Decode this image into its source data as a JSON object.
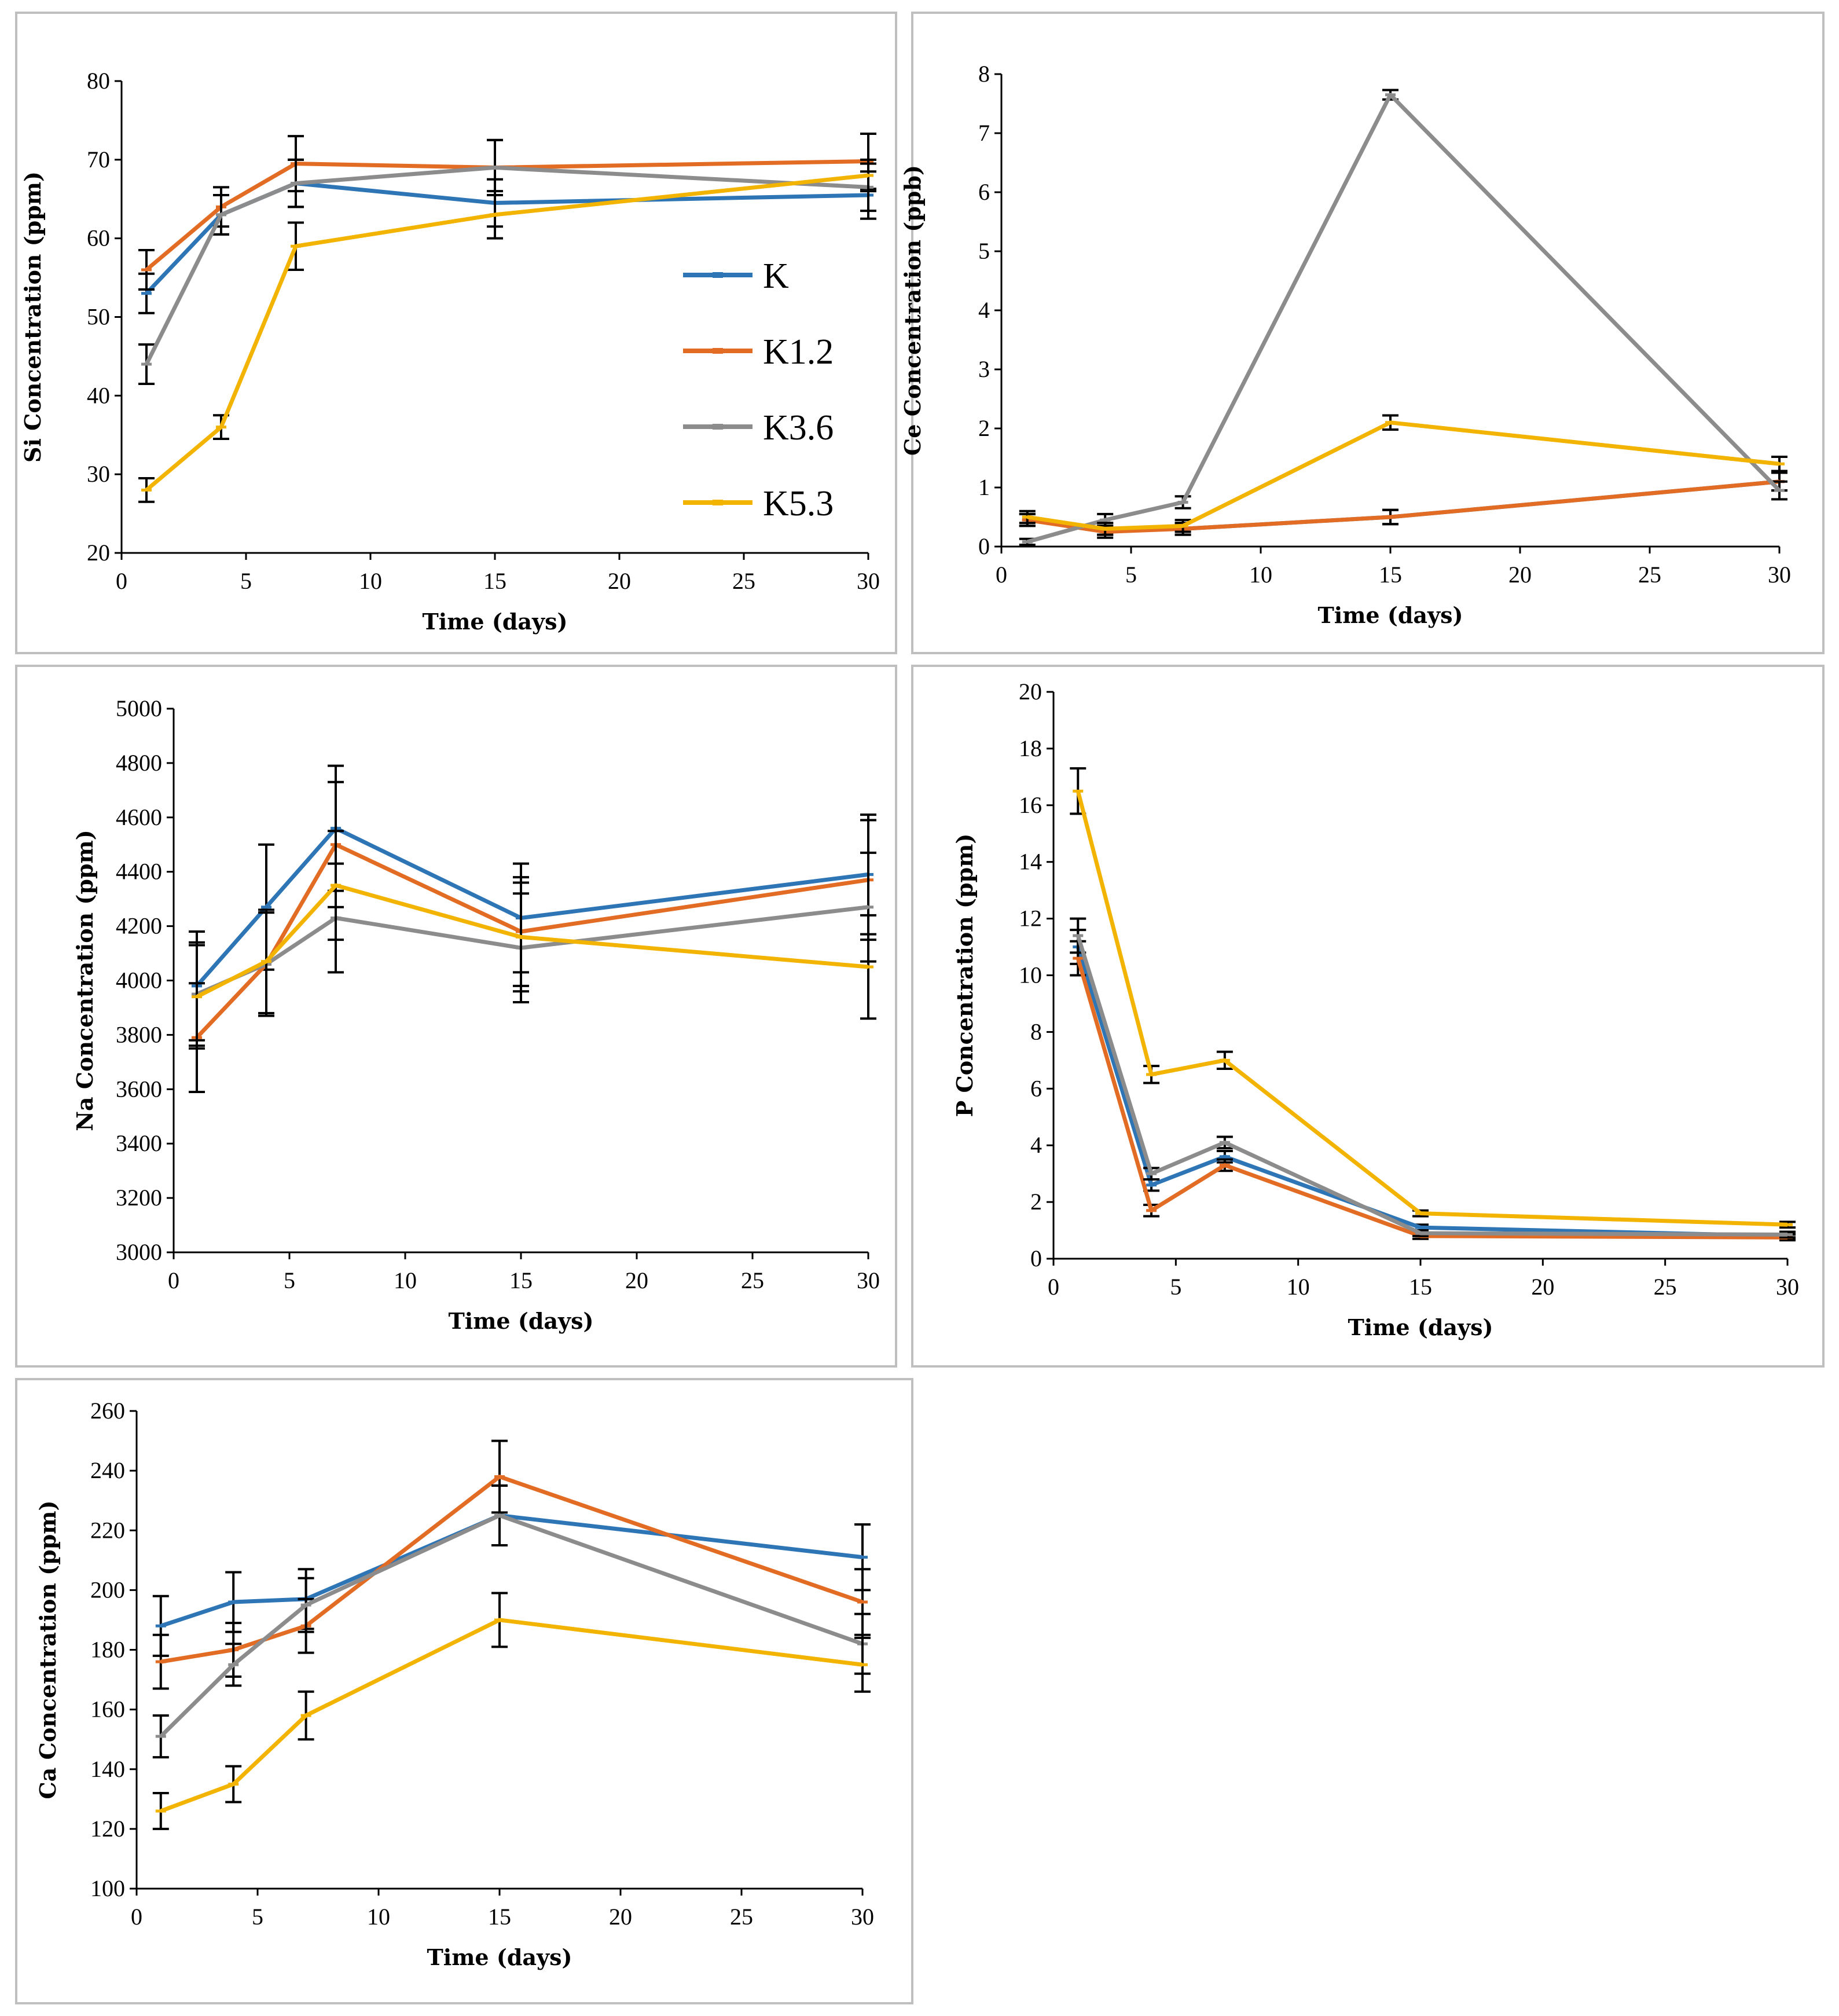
{
  "figure": {
    "series_names": [
      "K",
      "K1.2",
      "K3.6",
      "K5.3"
    ],
    "colors": {
      "K": "#2e75b6",
      "K1.2": "#e36c24",
      "K3.6": "#8c8c8c",
      "K5.3": "#f2b400"
    }
  },
  "chart_data": [
    {
      "type": "line",
      "xlabel": "Time (days)",
      "ylabel": "Si Concentration (ppm)",
      "xlim": [
        0,
        30
      ],
      "xticks": [
        0,
        5,
        10,
        15,
        20,
        25,
        30
      ],
      "ylim": [
        20,
        80
      ],
      "yticks": [
        20,
        30,
        40,
        50,
        60,
        70,
        80
      ],
      "legend": "right-center",
      "x": [
        1,
        4,
        7,
        15,
        30
      ],
      "series": [
        {
          "name": "K",
          "values": [
            53,
            63,
            67,
            64.5,
            65.5
          ],
          "errors": [
            2.5,
            2.5,
            3,
            3,
            3
          ]
        },
        {
          "name": "K1.2",
          "values": [
            56,
            64,
            69.5,
            69,
            69.8
          ],
          "errors": [
            2.5,
            2.5,
            3.5,
            3.5,
            3.5
          ]
        },
        {
          "name": "K3.6",
          "values": [
            44,
            63,
            67,
            69,
            66.5
          ],
          "errors": [
            2.5,
            2.5,
            3,
            3.5,
            3
          ]
        },
        {
          "name": "K5.3",
          "values": [
            28,
            36,
            59,
            63,
            68
          ],
          "errors": [
            1.5,
            1.5,
            3,
            3,
            2
          ]
        }
      ]
    },
    {
      "type": "line",
      "xlabel": "Time (days)",
      "ylabel": "Ce Concentration (ppb)",
      "xlim": [
        0,
        30
      ],
      "xticks": [
        0,
        5,
        10,
        15,
        20,
        25,
        30
      ],
      "ylim": [
        0,
        8
      ],
      "yticks": [
        0,
        1,
        2,
        3,
        4,
        5,
        6,
        7,
        8
      ],
      "x": [
        1,
        4,
        7,
        15,
        30
      ],
      "series": [
        {
          "name": "K",
          "values": [
            0.45,
            0.3,
            0.3,
            0.5,
            1.1
          ],
          "errors": [
            0.1,
            0.1,
            0.1,
            0.12,
            0.15
          ]
        },
        {
          "name": "K1.2",
          "values": [
            0.45,
            0.25,
            0.3,
            0.5,
            1.1
          ],
          "errors": [
            0.1,
            0.1,
            0.1,
            0.12,
            0.15
          ]
        },
        {
          "name": "K3.6",
          "values": [
            0.08,
            0.45,
            0.75,
            7.65,
            0.95
          ],
          "errors": [
            0.05,
            0.1,
            0.1,
            0.08,
            0.15
          ]
        },
        {
          "name": "K5.3",
          "values": [
            0.5,
            0.3,
            0.35,
            2.1,
            1.4
          ],
          "errors": [
            0.1,
            0.1,
            0.1,
            0.12,
            0.12
          ]
        }
      ]
    },
    {
      "type": "line",
      "xlabel": "Time (days)",
      "ylabel": "Na Concentration (ppm)",
      "xlim": [
        0,
        30
      ],
      "xticks": [
        0,
        5,
        10,
        15,
        20,
        25,
        30
      ],
      "ylim": [
        3000,
        5000
      ],
      "yticks": [
        3000,
        3200,
        3400,
        3600,
        3800,
        4000,
        4200,
        4400,
        4600,
        4800,
        5000
      ],
      "x": [
        1,
        4,
        7,
        15,
        30
      ],
      "series": [
        {
          "name": "K",
          "values": [
            3980,
            4270,
            4560,
            4230,
            4390
          ],
          "errors": [
            200,
            230,
            230,
            200,
            220
          ]
        },
        {
          "name": "K1.2",
          "values": [
            3790,
            4060,
            4500,
            4180,
            4370
          ],
          "errors": [
            200,
            190,
            230,
            200,
            220
          ]
        },
        {
          "name": "K3.6",
          "values": [
            3950,
            4060,
            4230,
            4120,
            4270
          ],
          "errors": [
            190,
            190,
            200,
            200,
            200
          ]
        },
        {
          "name": "K5.3",
          "values": [
            3940,
            4070,
            4350,
            4160,
            4050
          ],
          "errors": [
            190,
            190,
            200,
            200,
            190
          ]
        }
      ]
    },
    {
      "type": "line",
      "xlabel": "Time (days)",
      "ylabel": "P Concentration (ppm)",
      "xlim": [
        0,
        30
      ],
      "xticks": [
        0,
        5,
        10,
        15,
        20,
        25,
        30
      ],
      "ylim": [
        0,
        20
      ],
      "yticks": [
        0,
        2,
        4,
        6,
        8,
        10,
        12,
        14,
        16,
        18,
        20
      ],
      "x": [
        1,
        4,
        7,
        15,
        30
      ],
      "series": [
        {
          "name": "K",
          "values": [
            11,
            2.6,
            3.6,
            1.1,
            0.8
          ],
          "errors": [
            0.6,
            0.2,
            0.2,
            0.1,
            0.1
          ]
        },
        {
          "name": "K1.2",
          "values": [
            10.6,
            1.7,
            3.3,
            0.8,
            0.75
          ],
          "errors": [
            0.6,
            0.2,
            0.2,
            0.1,
            0.1
          ]
        },
        {
          "name": "K3.6",
          "values": [
            11.4,
            3.0,
            4.1,
            0.9,
            0.85
          ],
          "errors": [
            0.6,
            0.2,
            0.2,
            0.1,
            0.1
          ]
        },
        {
          "name": "K5.3",
          "values": [
            16.5,
            6.5,
            7.0,
            1.6,
            1.2
          ],
          "errors": [
            0.8,
            0.3,
            0.3,
            0.1,
            0.1
          ]
        }
      ]
    },
    {
      "type": "line",
      "xlabel": "Time (days)",
      "ylabel": "Ca Concentration (ppm)",
      "xlim": [
        0,
        30
      ],
      "xticks": [
        0,
        5,
        10,
        15,
        20,
        25,
        30
      ],
      "ylim": [
        100,
        260
      ],
      "yticks": [
        100,
        120,
        140,
        160,
        180,
        200,
        220,
        240,
        260
      ],
      "x": [
        1,
        4,
        7,
        15,
        30
      ],
      "series": [
        {
          "name": "K",
          "values": [
            188,
            196,
            197,
            225,
            211
          ],
          "errors": [
            10,
            10,
            10,
            10,
            11
          ]
        },
        {
          "name": "K1.2",
          "values": [
            176,
            180,
            188,
            238,
            196
          ],
          "errors": [
            9,
            9,
            9,
            12,
            11
          ]
        },
        {
          "name": "K3.6",
          "values": [
            151,
            175,
            195,
            225,
            182
          ],
          "errors": [
            7,
            7,
            9,
            10,
            10
          ]
        },
        {
          "name": "K5.3",
          "values": [
            126,
            135,
            158,
            190,
            175
          ],
          "errors": [
            6,
            6,
            8,
            9,
            9
          ]
        }
      ]
    }
  ]
}
